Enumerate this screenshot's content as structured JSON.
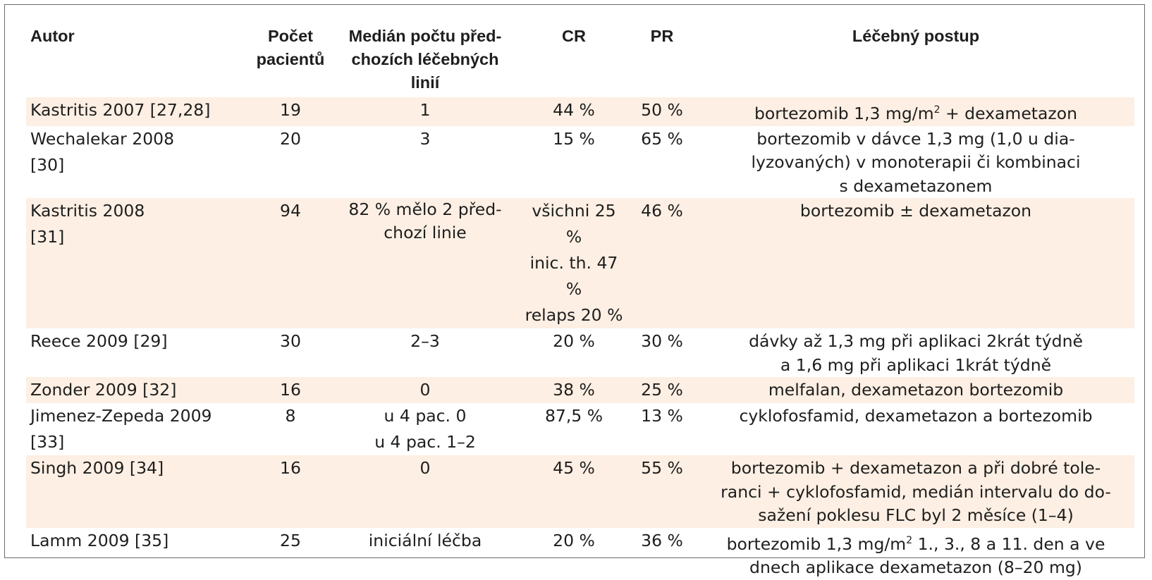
{
  "headers": {
    "autor": "Autor",
    "pocet_1": "Počet",
    "pocet_2": "pacientů",
    "median_1": "Medián počtu před-",
    "median_2": "chozích léčebných",
    "median_3": "linií",
    "cr": "CR",
    "pr": "PR",
    "postup": "Léčebný postup"
  },
  "rows": [
    {
      "autor_1": "Kastritis 2007 [27,28]",
      "autor_2": "",
      "pocet": "19",
      "median_1": "1",
      "median_2": "",
      "cr_1": "44 %",
      "cr_2": "",
      "cr_3": "",
      "pr": "50 %",
      "postup_1": "bortezomib 1,3 mg/m",
      "postup_sup": "2",
      "postup_1b": " + dexametazon",
      "postup_2": "",
      "postup_3": ""
    },
    {
      "autor_1": "Wechalekar 2008",
      "autor_2": "[30]",
      "pocet": "20",
      "median_1": "3",
      "median_2": "",
      "cr_1": "15 %",
      "cr_2": "",
      "cr_3": "",
      "pr": "65 %",
      "postup_1": "bortezomib v dávce 1,3 mg (1,0 u dia-",
      "postup_2": "lyzovaných) v monoterapii či kombinaci",
      "postup_3": "s dexametazonem"
    },
    {
      "autor_1": "Kastritis 2008",
      "autor_2": "[31]",
      "pocet": "94",
      "median_1": "82 % mělo 2 před-",
      "median_2": "chozí linie",
      "cr_1": "všichni 25 %",
      "cr_2": "inic. th. 47 %",
      "cr_3": "relaps 20 %",
      "pr": "46 %",
      "postup_1": "bortezomib ± dexametazon",
      "postup_2": "",
      "postup_3": ""
    },
    {
      "autor_1": "Reece 2009 [29]",
      "autor_2": "",
      "pocet": "30",
      "median_1": "2–3",
      "median_2": "",
      "cr_1": "20 %",
      "cr_2": "",
      "cr_3": "",
      "pr": "30 %",
      "postup_1": "dávky až 1,3 mg při aplikaci 2krát týdně",
      "postup_2": "a 1,6 mg při aplikaci 1krát týdně",
      "postup_3": ""
    },
    {
      "autor_1": "Zonder 2009 [32]",
      "autor_2": "",
      "pocet": "16",
      "median_1": "0",
      "median_2": "",
      "cr_1": "38 %",
      "cr_2": "",
      "cr_3": "",
      "pr": "25 %",
      "postup_1": "melfalan, dexametazon bortezomib",
      "postup_2": "",
      "postup_3": ""
    },
    {
      "autor_1": "Jimenez-Zepeda 2009",
      "autor_2": "[33]",
      "pocet": "8",
      "median_1": "u 4 pac. 0",
      "median_2": "u 4 pac. 1–2",
      "cr_1": "87,5 %",
      "cr_2": "",
      "cr_3": "",
      "pr": "13 %",
      "postup_1": "cyklofosfamid, dexametazon a bortezomib",
      "postup_2": "",
      "postup_3": ""
    },
    {
      "autor_1": "Singh 2009 [34]",
      "autor_2": "",
      "pocet": "16",
      "median_1": "0",
      "median_2": "",
      "cr_1": "45 %",
      "cr_2": "",
      "cr_3": "",
      "pr": "55 %",
      "postup_1": "bortezomib + dexametazon a při dobré tole-",
      "postup_2": "ranci + cyklofosfamid, medián intervalu do do-",
      "postup_3": "sažení poklesu FLC byl 2 měsíce (1–4)"
    },
    {
      "autor_1": "Lamm 2009 [35]",
      "autor_2": "",
      "pocet": "25",
      "median_1": "iniciální léčba",
      "median_2": "",
      "cr_1": "20 %",
      "cr_2": "",
      "cr_3": "",
      "pr": "36 %",
      "postup_1": "bortezomib 1,3 mg/m",
      "postup_sup": "2",
      "postup_1b": " 1., 3., 8 a 11. den a ve",
      "postup_2": "dnech aplikace dexametazon (8–20 mg)",
      "postup_3": ""
    }
  ]
}
